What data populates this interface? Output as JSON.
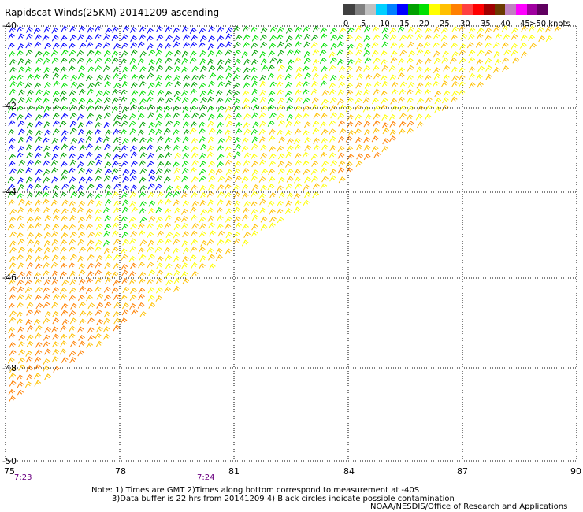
{
  "title": "Rapidscat Winds(25KM) 20141209 ascending",
  "legend": {
    "colors": [
      "#404040",
      "#808080",
      "#c0c0c0",
      "#00d0ff",
      "#0080ff",
      "#0000ff",
      "#00a000",
      "#00e000",
      "#ffff00",
      "#ffc000",
      "#ff8000",
      "#ff4040",
      "#ff0000",
      "#a00000",
      "#6b3a00",
      "#c080c0",
      "#ff00ff",
      "#a000a0",
      "#600060"
    ],
    "labels": [
      "0",
      "5",
      "10",
      "15",
      "20",
      "25",
      "30",
      "35",
      "40",
      "45",
      ">50 knots"
    ]
  },
  "axes": {
    "x_ticks": [
      "75",
      "78",
      "81",
      "84",
      "87",
      "90"
    ],
    "y_ticks": [
      "-40",
      "-42",
      "-44",
      "-46",
      "-48",
      "-50"
    ],
    "lon_range": [
      75,
      90
    ],
    "lat_range": [
      -50,
      -40
    ]
  },
  "times": [
    "7:23",
    "7:24"
  ],
  "notes": [
    "Note: 1) Times are GMT 2)Times along bottom correspond to measurement at -40S",
    "3)Data buffer is 22 hrs from 20141209 4) Black circles indicate possible contamination"
  ],
  "credit": "NOAA/NESDIS/Office of Research and Applications",
  "wind_colors": {
    "blue": "#0000ff",
    "green": "#00a000",
    "light_green": "#00e000",
    "yellow": "#ffff00",
    "gold": "#ffc000",
    "orange": "#ff8000"
  }
}
